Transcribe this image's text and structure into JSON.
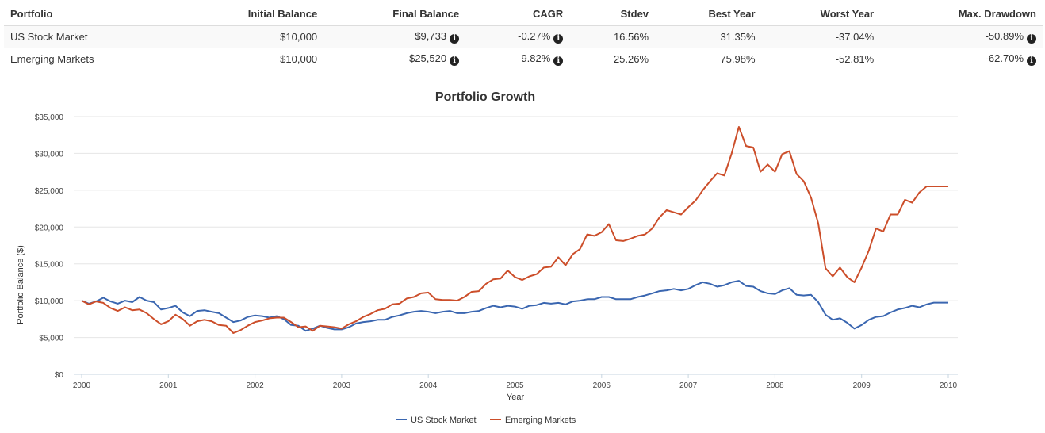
{
  "table": {
    "headers": [
      "Portfolio",
      "Initial Balance",
      "Final Balance",
      "CAGR",
      "Stdev",
      "Best Year",
      "Worst Year",
      "Max. Drawdown"
    ],
    "rows": [
      {
        "portfolio": "US Stock Market",
        "initial_balance": "$10,000",
        "final_balance": "$9,733",
        "cagr": "-0.27%",
        "stdev": "16.56%",
        "best_year": "31.35%",
        "worst_year": "-37.04%",
        "max_drawdown": "-50.89%"
      },
      {
        "portfolio": "Emerging Markets",
        "initial_balance": "$10,000",
        "final_balance": "$25,520",
        "cagr": "9.82%",
        "stdev": "25.26%",
        "best_year": "75.98%",
        "worst_year": "-52.81%",
        "max_drawdown": "-62.70%"
      }
    ],
    "info_icon": "info-circle-icon"
  },
  "chart_data": {
    "type": "line",
    "title": "Portfolio Growth",
    "xlabel": "Year",
    "ylabel": "Portfolio Balance ($)",
    "xlim": [
      2000,
      2010
    ],
    "ylim": [
      0,
      35000
    ],
    "x_ticks": [
      "2000",
      "2001",
      "2002",
      "2003",
      "2004",
      "2005",
      "2006",
      "2007",
      "2008",
      "2009",
      "2010"
    ],
    "y_ticks": [
      "$0",
      "$5,000",
      "$10,000",
      "$15,000",
      "$20,000",
      "$25,000",
      "$30,000",
      "$35,000"
    ],
    "y_tick_values": [
      0,
      5000,
      10000,
      15000,
      20000,
      25000,
      30000,
      35000
    ],
    "grid": true,
    "legend_position": "bottom-center",
    "x_frequency": "monthly from 2000-01 to 2010-01",
    "series": [
      {
        "name": "US Stock Market",
        "color": "#3a66b0",
        "values": [
          10000,
          9600,
          9900,
          10400,
          9900,
          9600,
          10000,
          9800,
          10500,
          10000,
          9800,
          8800,
          9000,
          9300,
          8400,
          7900,
          8600,
          8700,
          8500,
          8300,
          7700,
          7100,
          7300,
          7800,
          8000,
          7900,
          7700,
          7900,
          7500,
          6700,
          6600,
          5900,
          6200,
          6600,
          6300,
          6100,
          6100,
          6400,
          6900,
          7100,
          7200,
          7400,
          7400,
          7800,
          8000,
          8300,
          8500,
          8600,
          8500,
          8300,
          8500,
          8600,
          8300,
          8300,
          8500,
          8600,
          9000,
          9300,
          9100,
          9300,
          9200,
          8900,
          9300,
          9400,
          9700,
          9600,
          9700,
          9500,
          9900,
          10000,
          10200,
          10200,
          10500,
          10500,
          10200,
          10200,
          10200,
          10500,
          10700,
          11000,
          11300,
          11400,
          11600,
          11400,
          11600,
          12100,
          12500,
          12300,
          11900,
          12100,
          12500,
          12700,
          12000,
          11900,
          11300,
          11000,
          10900,
          11400,
          11700,
          10800,
          10700,
          10800,
          9800,
          8100,
          7400,
          7600,
          7000,
          6200,
          6700,
          7400,
          7800,
          7900,
          8400,
          8800,
          9000,
          9300,
          9100,
          9500,
          9733,
          9733,
          9733
        ]
      },
      {
        "name": "Emerging Markets",
        "color": "#cc4e2a",
        "values": [
          10000,
          9500,
          9900,
          9700,
          9000,
          8600,
          9100,
          8700,
          8800,
          8300,
          7500,
          6800,
          7200,
          8100,
          7500,
          6600,
          7200,
          7400,
          7200,
          6700,
          6600,
          5600,
          6000,
          6600,
          7100,
          7300,
          7600,
          7700,
          7700,
          7100,
          6400,
          6500,
          5900,
          6600,
          6500,
          6400,
          6200,
          6800,
          7200,
          7800,
          8200,
          8700,
          8900,
          9500,
          9600,
          10300,
          10500,
          11000,
          11100,
          10200,
          10100,
          10100,
          10000,
          10500,
          11200,
          11300,
          12300,
          12900,
          13000,
          14100,
          13200,
          12800,
          13300,
          13600,
          14500,
          14600,
          15900,
          14800,
          16300,
          17000,
          19000,
          18800,
          19300,
          20400,
          18200,
          18100,
          18400,
          18800,
          19000,
          19800,
          21300,
          22300,
          22000,
          21700,
          22700,
          23600,
          25000,
          26200,
          27300,
          27000,
          30000,
          33600,
          31000,
          30800,
          27500,
          28500,
          27500,
          29900,
          30300,
          27200,
          26200,
          24000,
          20500,
          14400,
          13300,
          14500,
          13200,
          12500,
          14500,
          16800,
          19800,
          19400,
          21700,
          21700,
          23700,
          23300,
          24700,
          25520,
          25520,
          25520,
          25520
        ]
      }
    ]
  }
}
